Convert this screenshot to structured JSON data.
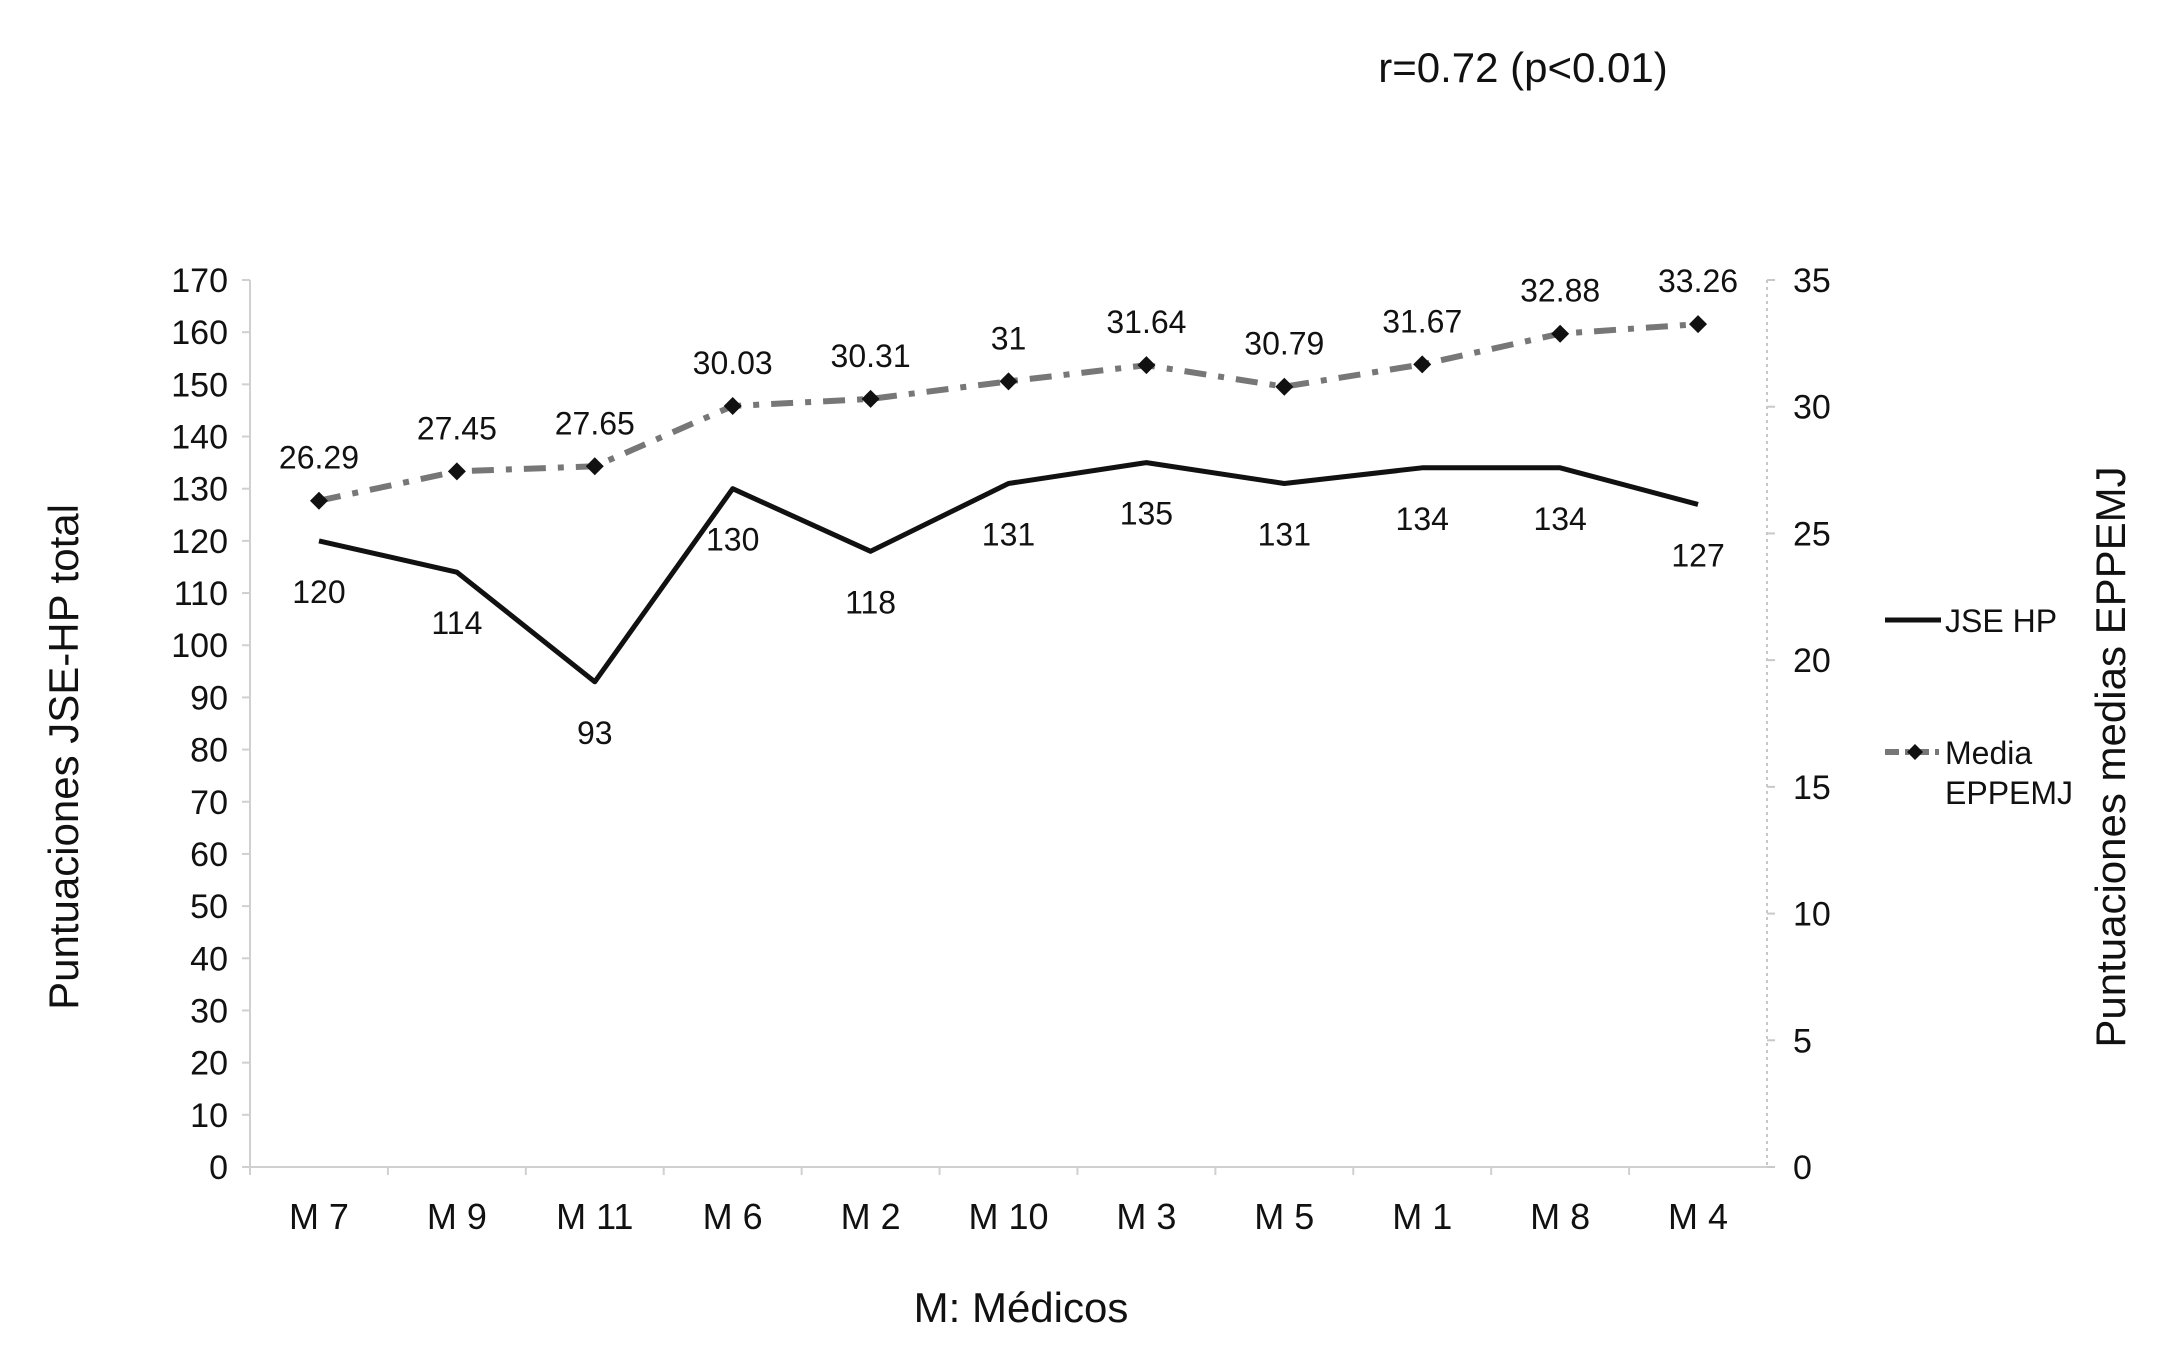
{
  "chart_data": {
    "type": "line",
    "annotation": "r=0.72 (p<0.01)",
    "xlabel": "M: Médicos",
    "ylabel_left": "Puntuaciones JSE-HP total",
    "ylabel_right": "Puntuaciones medias EPPEMJ",
    "categories": [
      "M 7",
      "M 9",
      "M 11",
      "M 6",
      "M 2",
      "M 10",
      "M 3",
      "M 5",
      "M 1",
      "M 8",
      "M 4"
    ],
    "y_left": {
      "range": [
        0,
        170
      ],
      "ticks": [
        0,
        10,
        20,
        30,
        40,
        50,
        60,
        70,
        80,
        90,
        100,
        110,
        120,
        130,
        140,
        150,
        160,
        170
      ]
    },
    "y_right": {
      "range": [
        0,
        35
      ],
      "ticks": [
        0,
        5,
        10,
        15,
        20,
        25,
        30,
        35
      ]
    },
    "grid": false,
    "legend_position": "right",
    "series": [
      {
        "name": "JSE HP",
        "axis": "left",
        "style": "solid",
        "color": "#111111",
        "values": [
          120,
          114,
          93,
          130,
          118,
          131,
          135,
          131,
          134,
          134,
          127
        ],
        "labels": [
          "120",
          "114",
          "93",
          "130",
          "118",
          "131",
          "135",
          "131",
          "134",
          "134",
          "127"
        ]
      },
      {
        "name": "Media\nEPPEMJ",
        "axis": "right",
        "style": "dash-dot",
        "marker": "diamond",
        "color": "#777777",
        "values": [
          26.29,
          27.45,
          27.65,
          30.03,
          30.31,
          31,
          31.64,
          30.79,
          31.67,
          32.88,
          33.26
        ],
        "labels": [
          "26.29",
          "27.45",
          "27.65",
          "30.03",
          "30.31",
          "31",
          "31.64",
          "30.79",
          "31.67",
          "32.88",
          "33.26"
        ]
      }
    ]
  }
}
